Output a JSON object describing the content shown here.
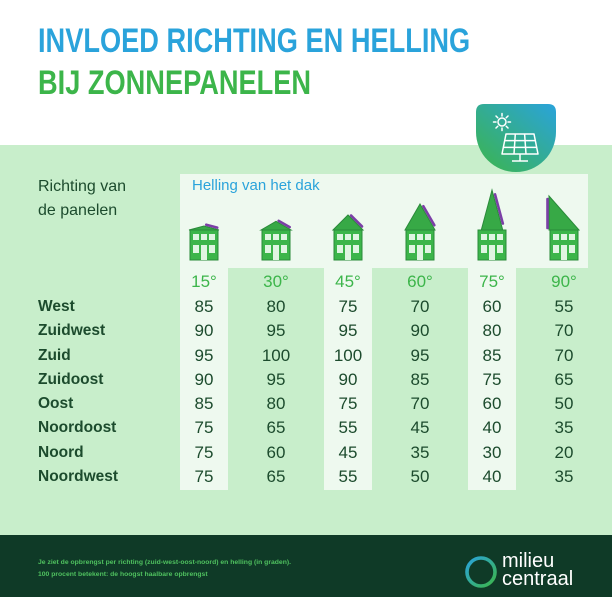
{
  "title": {
    "line1": "INVLOED RICHTING EN HELLING",
    "line2": "BIJ ZONNEPANELEN"
  },
  "badge": {
    "icons": [
      "sun-icon",
      "solar-panel-icon"
    ]
  },
  "column_icon": "house-with-solar-panel-icon",
  "chart_data": {
    "type": "table",
    "row_label": [
      "Richting van",
      "de panelen"
    ],
    "column_label": "Helling van het dak",
    "columns": [
      "15°",
      "30°",
      "45°",
      "60°",
      "75°",
      "90°"
    ],
    "rows": [
      {
        "name": "West",
        "values": [
          85,
          80,
          75,
          70,
          60,
          55
        ]
      },
      {
        "name": "Zuidwest",
        "values": [
          90,
          95,
          95,
          90,
          80,
          70
        ]
      },
      {
        "name": "Zuid",
        "values": [
          95,
          100,
          100,
          95,
          85,
          70
        ]
      },
      {
        "name": "Zuidoost",
        "values": [
          90,
          95,
          90,
          85,
          75,
          65
        ]
      },
      {
        "name": "Oost",
        "values": [
          85,
          80,
          75,
          70,
          60,
          50
        ]
      },
      {
        "name": "Noordoost",
        "values": [
          75,
          65,
          55,
          45,
          40,
          35
        ]
      },
      {
        "name": "Noord",
        "values": [
          75,
          60,
          45,
          35,
          30,
          20
        ]
      },
      {
        "name": "Noordwest",
        "values": [
          75,
          65,
          55,
          50,
          40,
          35
        ]
      }
    ]
  },
  "footer": {
    "line1": "Je ziet de opbrengst per richting (zuid-west-oost-noord) en helling (in graden).",
    "line2": "100 procent betekent: de hoogst haalbare opbrengst"
  },
  "logo": {
    "line1": "milieu",
    "line2": "centraal",
    "icon": "ring-logo-icon"
  },
  "colors": {
    "title_blue": "#2aa3db",
    "title_green": "#3cb54a",
    "background_green": "#c8eecb",
    "highlight_column": "#eef9ef",
    "text_dark_green": "#1c4b2d",
    "footer_bg": "#0f3a27",
    "footer_text": "#4fc15f",
    "solar_panel_purple": "#7b3fa6"
  }
}
